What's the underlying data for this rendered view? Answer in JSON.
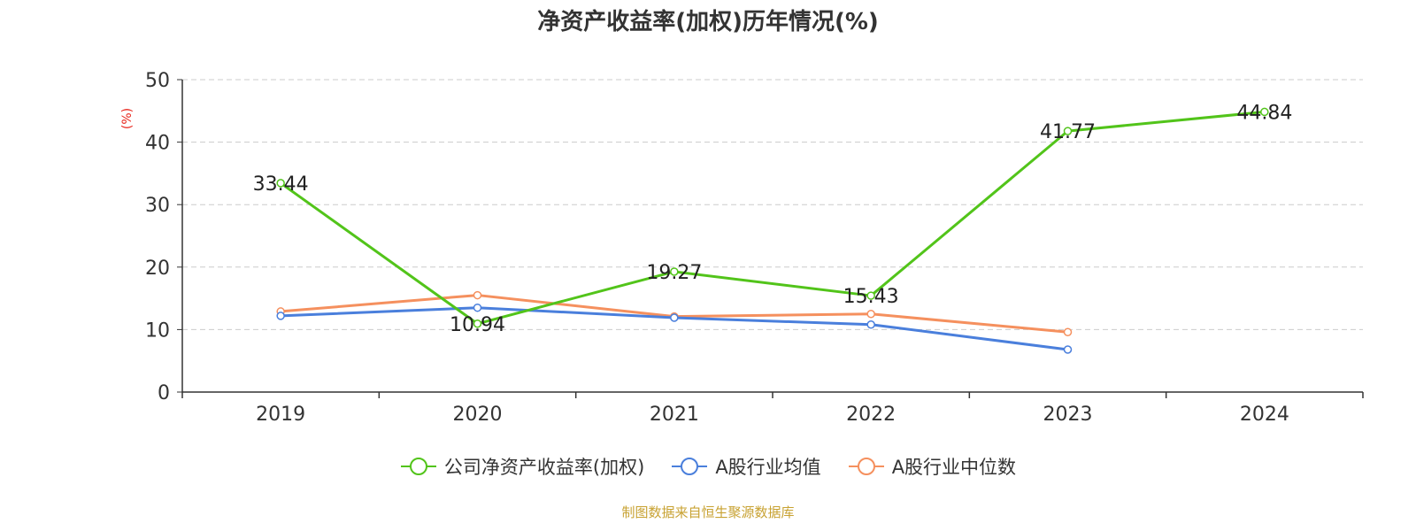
{
  "title": "净资产收益率(加权)历年情况(%)",
  "source": "制图数据来自恒生聚源数据库",
  "colors": {
    "title": "#333333",
    "ylabel": "#e8251b",
    "source": "#c8a232",
    "axis": "#333333",
    "grid": "#cccccc"
  },
  "chart_data": {
    "type": "line",
    "title": "净资产收益率(加权)历年情况(%)",
    "xlabel": "",
    "ylabel": "(%)",
    "categories": [
      "2019",
      "2020",
      "2021",
      "2022",
      "2023",
      "2024"
    ],
    "ylim": [
      0,
      50
    ],
    "yticks": [
      0,
      10,
      20,
      30,
      40,
      50
    ],
    "grid": true,
    "legend_position": "bottom",
    "series": [
      {
        "name": "公司净资产收益率(加权)",
        "color": "#52c41a",
        "values": [
          33.44,
          10.94,
          19.27,
          15.43,
          41.77,
          44.84
        ],
        "labels": [
          "33.44",
          "10.94",
          "19.27",
          "15.43",
          "41.77",
          "44.84"
        ]
      },
      {
        "name": "A股行业均值",
        "color": "#4a7fdc",
        "values": [
          12.2,
          13.5,
          11.9,
          10.8,
          6.8,
          null
        ]
      },
      {
        "name": "A股行业中位数",
        "color": "#f5905e",
        "values": [
          12.9,
          15.5,
          12.1,
          12.5,
          9.6,
          null
        ]
      }
    ]
  }
}
